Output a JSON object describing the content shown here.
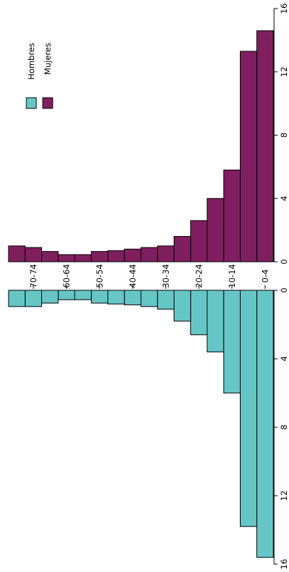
{
  "chart_data": {
    "type": "bar",
    "orientation": "rotated population pyramid",
    "categories": [
      "0-4",
      "5-9",
      "10-14",
      "15-19",
      "20-24",
      "25-29",
      "30-34",
      "35-39",
      "40-44",
      "45-49",
      "50-54",
      "55-59",
      "60-64",
      "65-69",
      "70-74",
      "75-79"
    ],
    "category_labels_shown": [
      "0-4",
      "10-14",
      "20-24",
      "30-34",
      "40-44",
      "50-54",
      "60-64",
      "70-74"
    ],
    "series": [
      {
        "name": "Mujeres",
        "color": "#7f1f5f",
        "values": [
          14.6,
          13.3,
          5.8,
          4.0,
          2.6,
          1.6,
          1.0,
          0.9,
          0.8,
          0.7,
          0.65,
          0.45,
          0.45,
          0.65,
          0.9,
          1.0
        ]
      },
      {
        "name": "Hombres",
        "color": "#66c6c6",
        "values": [
          15.6,
          13.8,
          6.0,
          3.6,
          2.6,
          1.8,
          1.1,
          0.95,
          0.85,
          0.8,
          0.75,
          0.55,
          0.55,
          0.75,
          0.95,
          0.95
        ]
      }
    ],
    "axis_ticks": [
      0,
      4,
      8,
      12,
      16
    ],
    "xlim": [
      0,
      16
    ],
    "legend": {
      "position": "top-left",
      "entries": [
        "Hombres",
        "Mujeres"
      ]
    },
    "grid": false
  }
}
